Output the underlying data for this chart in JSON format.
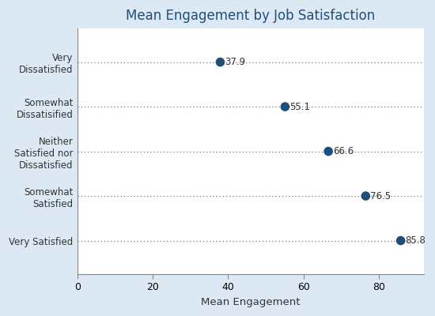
{
  "title": "Mean Engagement by Job Satisfaction",
  "xlabel": "Mean Engagement",
  "categories": [
    "Very\nDissatisfied",
    "Somewhat\nDissatisified",
    "Neither\nSatisfied nor\nDissatisfied",
    "Somewhat\nSatisfied",
    "Very Satisfied"
  ],
  "values": [
    37.9,
    55.1,
    66.6,
    76.5,
    85.8
  ],
  "dot_color": "#1f4e79",
  "dotted_line_color": "#888888",
  "background_color": "#dce9f5",
  "plot_bg_color": "#ffffff",
  "title_color": "#1f4e79",
  "label_color": "#333333",
  "xlim": [
    0,
    92
  ],
  "xticks": [
    0,
    20,
    40,
    60,
    80
  ],
  "dot_size": 70,
  "title_fontsize": 12,
  "label_fontsize": 8.5,
  "tick_fontsize": 9,
  "xlabel_fontsize": 9.5
}
